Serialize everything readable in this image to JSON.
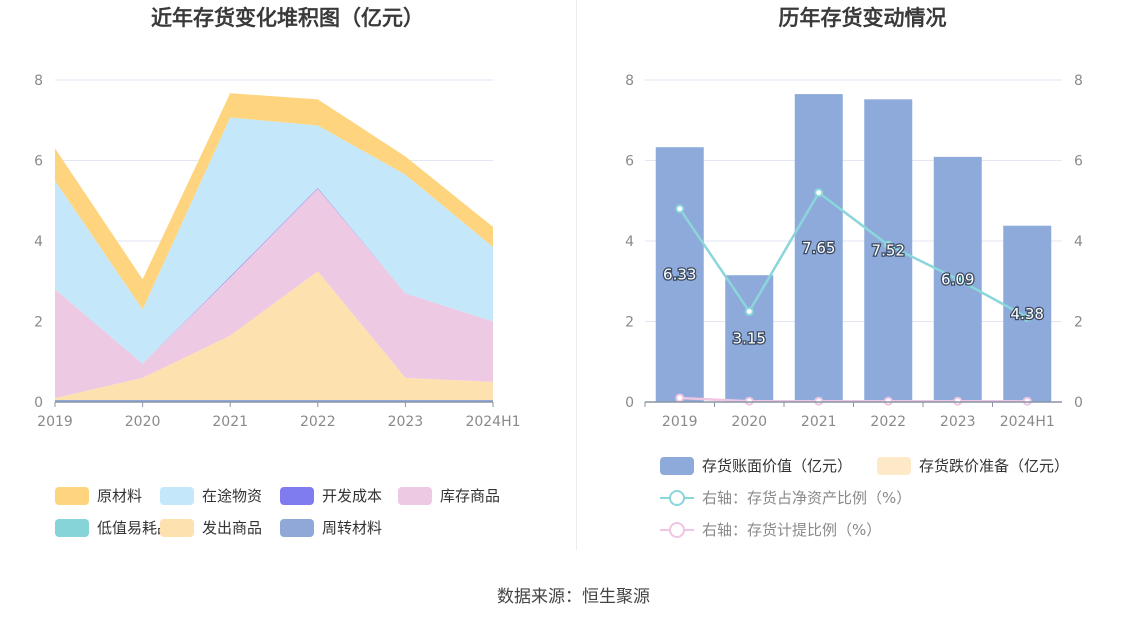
{
  "source": "数据来源：恒生聚源",
  "chart_data": [
    {
      "type": "area",
      "title": "近年存货变化堆积图（亿元）",
      "categories": [
        "2019",
        "2020",
        "2021",
        "2022",
        "2023",
        "2024H1"
      ],
      "ylim": [
        0,
        8
      ],
      "yticks": [
        "0",
        "2",
        "4",
        "6",
        "8"
      ],
      "stacked": true,
      "grid": true,
      "legend_position": "bottom",
      "series": [
        {
          "name": "周转材料",
          "color": "#8fa8d8",
          "values": [
            0.05,
            0.05,
            0.05,
            0.05,
            0.05,
            0.05
          ]
        },
        {
          "name": "低值易耗品",
          "color": "#87d4d8",
          "values": [
            0.0,
            0.0,
            0.0,
            0.0,
            0.0,
            0.0
          ]
        },
        {
          "name": "发出商品",
          "color": "#fde2b0",
          "values": [
            0.05,
            0.55,
            1.6,
            3.2,
            0.55,
            0.45
          ]
        },
        {
          "name": "库存商品",
          "color": "#edc9e3",
          "values": [
            2.7,
            0.35,
            1.45,
            2.05,
            2.1,
            1.5
          ]
        },
        {
          "name": "开发成本",
          "color": "#7f7cf0",
          "values": [
            0.0,
            0.0,
            0.02,
            0.02,
            0.0,
            0.0
          ]
        },
        {
          "name": "在途物资",
          "color": "#c4e8fa",
          "values": [
            2.7,
            1.35,
            3.95,
            1.55,
            2.95,
            1.85
          ]
        },
        {
          "name": "原材料",
          "color": "#ffd47e",
          "values": [
            0.8,
            0.75,
            0.6,
            0.65,
            0.45,
            0.5
          ]
        }
      ],
      "legend_order": [
        "原材料",
        "在途物资",
        "开发成本",
        "库存商品",
        "低值易耗品",
        "发出商品",
        "周转材料"
      ]
    },
    {
      "type": "bar",
      "title": "历年存货变动情况",
      "categories": [
        "2019",
        "2020",
        "2021",
        "2022",
        "2023",
        "2024H1"
      ],
      "ylim": [
        0,
        8
      ],
      "yticks": [
        "0",
        "2",
        "4",
        "6",
        "8"
      ],
      "right_ylim": [
        0,
        8
      ],
      "right_yticks": [
        "0",
        "2",
        "4",
        "6",
        "8"
      ],
      "grid": true,
      "legend_position": "bottom",
      "series": [
        {
          "name": "存货账面价值（亿元）",
          "kind": "bar",
          "axis": "left",
          "color": "#8eaadb",
          "values": [
            6.33,
            3.15,
            7.65,
            7.52,
            6.09,
            4.38
          ],
          "labels": [
            "6.33",
            "3.15",
            "7.65",
            "7.52",
            "6.09",
            "4.38"
          ]
        },
        {
          "name": "存货跌价准备（亿元）",
          "kind": "bar",
          "axis": "left",
          "color": "#fde8c8",
          "values": [
            0,
            0,
            0,
            0,
            0,
            0
          ]
        },
        {
          "name": "右轴：存货占净资产比例（%）",
          "kind": "line",
          "axis": "right",
          "color": "#8ad6da",
          "values": [
            4.8,
            2.25,
            5.2,
            3.9,
            3.05,
            2.1
          ]
        },
        {
          "name": "右轴：存货计提比例（%）",
          "kind": "line",
          "axis": "right",
          "color": "#eec5e2",
          "values": [
            0.1,
            0.02,
            0.02,
            0.02,
            0.02,
            0.02
          ]
        }
      ]
    }
  ]
}
